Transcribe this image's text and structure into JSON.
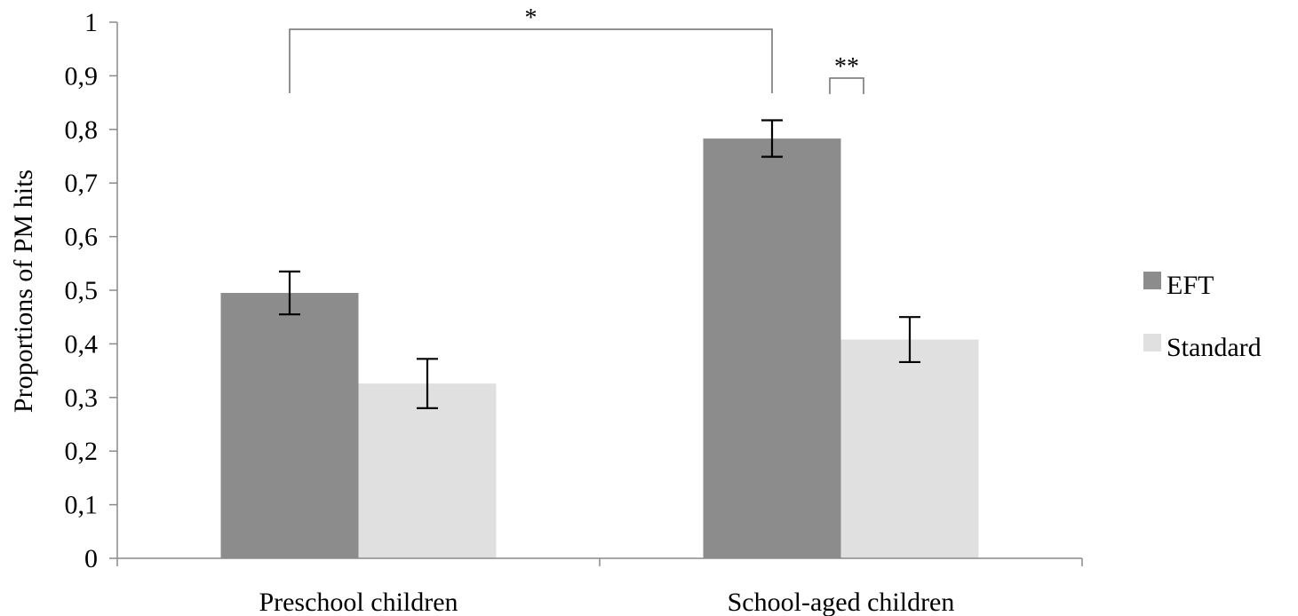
{
  "chart_data": {
    "type": "bar",
    "title": "",
    "xlabel": "",
    "ylabel": "Proportions of PM hits",
    "ylim": [
      0,
      1
    ],
    "yticks": [
      0,
      0.1,
      0.2,
      0.3,
      0.4,
      0.5,
      0.6,
      0.7,
      0.8,
      0.9,
      1
    ],
    "ytick_labels": [
      "0",
      "0,1",
      "0,2",
      "0,3",
      "0,4",
      "0,5",
      "0,6",
      "0,7",
      "0,8",
      "0,9",
      "1"
    ],
    "categories": [
      "Preschool children",
      "School-aged children"
    ],
    "series": [
      {
        "name": "EFT",
        "values": [
          0.495,
          0.783
        ],
        "error": [
          0.04,
          0.034
        ],
        "color": "#8c8c8c"
      },
      {
        "name": "Standard",
        "values": [
          0.326,
          0.408
        ],
        "error": [
          0.046,
          0.042
        ],
        "color": "#e0e0e0"
      }
    ],
    "grid": false,
    "legend_position": "right",
    "significance": [
      {
        "label": "*",
        "from": {
          "category": 0,
          "series": 0
        },
        "to": {
          "category": 1,
          "series": 0
        }
      },
      {
        "label": "**",
        "from": {
          "category": 1,
          "series": 0
        },
        "to": {
          "category": 1,
          "series": 1
        }
      }
    ]
  }
}
